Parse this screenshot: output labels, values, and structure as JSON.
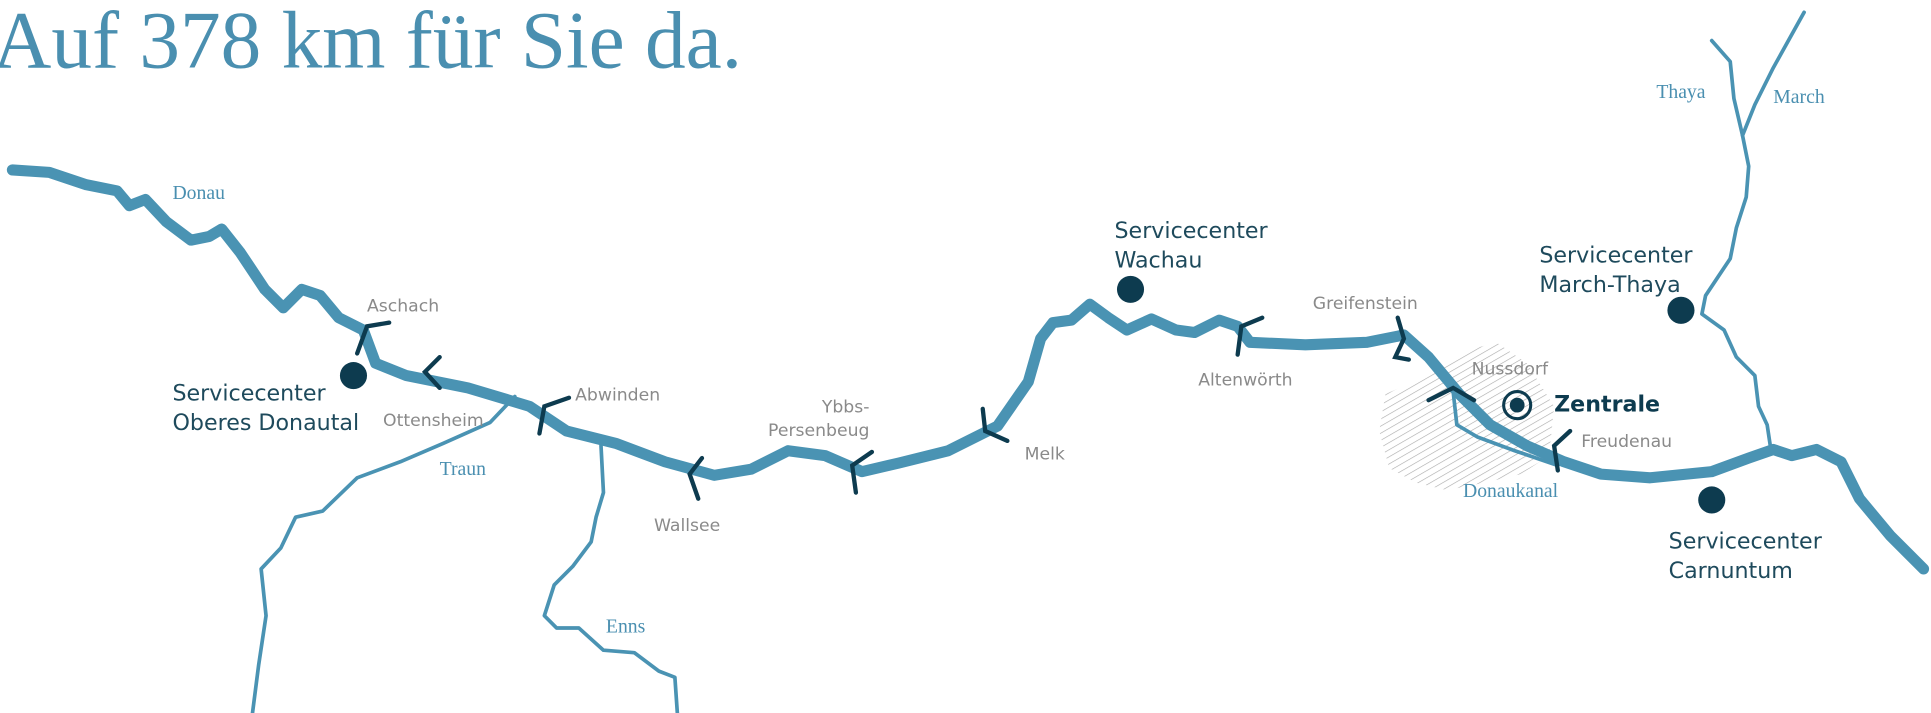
{
  "title": "Auf 378 km für Sie da.",
  "rivers": [
    "Donau",
    "Traun",
    "Enns",
    "Thaya",
    "March",
    "Donaukanal"
  ],
  "locks": [
    [
      "Aschach"
    ],
    [
      "Ottensheim"
    ],
    [
      "Abwinden"
    ],
    [
      "Wallsee"
    ],
    [
      "Ybbs-",
      "Persenbeug"
    ],
    [
      "Melk"
    ],
    [
      "Altenwörth"
    ],
    [
      "Greifenstein"
    ],
    [
      "Nussdorf"
    ],
    [
      "Freudenau"
    ]
  ],
  "service_centers": [
    [
      "Servicecenter",
      "Oberes Donautal"
    ],
    [
      "Servicecenter",
      "Wachau"
    ],
    [
      "Servicecenter",
      "March-Thaya"
    ],
    [
      "Servicecenter",
      "Carnuntum"
    ]
  ],
  "headquarters": "Zentrale"
}
